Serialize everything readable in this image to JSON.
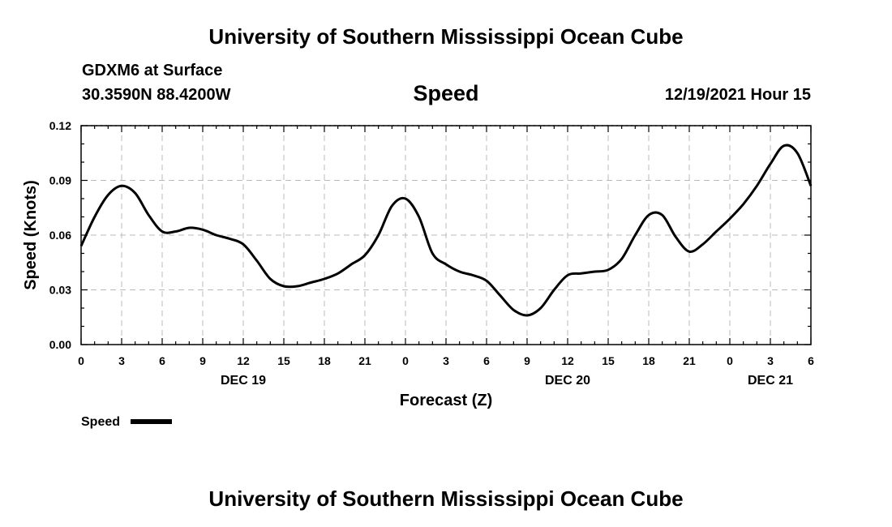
{
  "header": {
    "title": "University of Southern Mississippi Ocean Cube",
    "station": "GDXM6 at Surface",
    "coords": "30.3590N  88.4200W",
    "plot_title": "Speed",
    "datetime": "12/19/2021 Hour 15"
  },
  "footer": {
    "title": "University of Southern Mississippi Ocean Cube"
  },
  "chart_data": {
    "type": "line",
    "title": "Speed",
    "xlabel": "Forecast (Z)",
    "ylabel": "Speed (Knots)",
    "ylim": [
      0,
      0.12
    ],
    "yticks": [
      "0.00",
      "0.03",
      "0.06",
      "0.09",
      "0.12"
    ],
    "xlim": [
      0,
      54
    ],
    "xtick_labels": [
      "0",
      "3",
      "6",
      "9",
      "12",
      "15",
      "18",
      "21",
      "0",
      "3",
      "6",
      "9",
      "12",
      "15",
      "18",
      "21",
      "0",
      "3",
      "6"
    ],
    "day_labels": [
      {
        "label": "DEC 19",
        "at": 12
      },
      {
        "label": "DEC 20",
        "at": 36
      },
      {
        "label": "DEC 21",
        "at": 51
      }
    ],
    "grid": true,
    "legend_placement": "bottom-left",
    "series": [
      {
        "name": "Speed",
        "color": "#000000",
        "x": [
          0,
          1,
          2,
          3,
          4,
          5,
          6,
          7,
          8,
          9,
          10,
          11,
          12,
          13,
          14,
          15,
          16,
          17,
          18,
          19,
          20,
          21,
          22,
          23,
          24,
          25,
          26,
          27,
          28,
          29,
          30,
          31,
          32,
          33,
          34,
          35,
          36,
          37,
          38,
          39,
          40,
          41,
          42,
          43,
          44,
          45,
          46,
          47,
          48,
          49,
          50,
          51,
          52,
          53,
          54
        ],
        "values": [
          0.054,
          0.07,
          0.082,
          0.087,
          0.083,
          0.071,
          0.062,
          0.062,
          0.064,
          0.063,
          0.06,
          0.058,
          0.055,
          0.046,
          0.036,
          0.032,
          0.032,
          0.034,
          0.036,
          0.039,
          0.044,
          0.049,
          0.06,
          0.076,
          0.08,
          0.07,
          0.05,
          0.044,
          0.04,
          0.038,
          0.035,
          0.027,
          0.019,
          0.016,
          0.02,
          0.03,
          0.038,
          0.039,
          0.04,
          0.041,
          0.047,
          0.06,
          0.071,
          0.071,
          0.059,
          0.051,
          0.055,
          0.062,
          0.069,
          0.077,
          0.087,
          0.099,
          0.109,
          0.105,
          0.087
        ]
      }
    ]
  }
}
